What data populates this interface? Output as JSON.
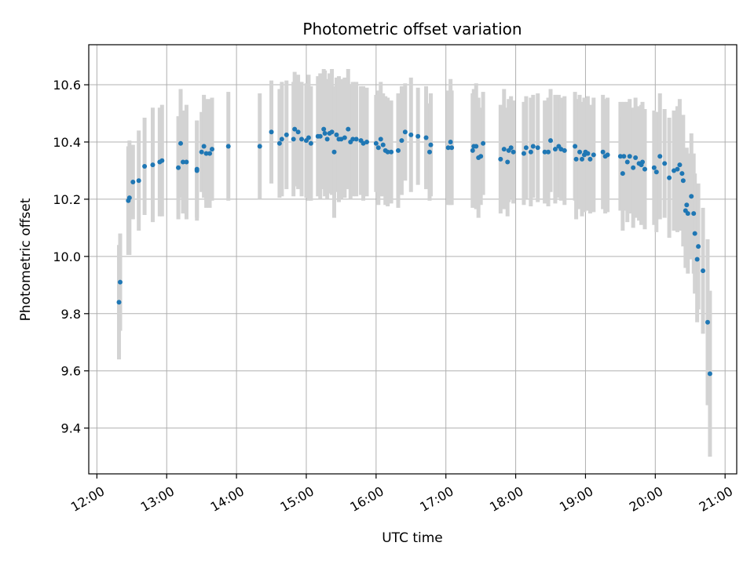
{
  "chart_data": {
    "type": "scatter",
    "title": "Photometric offset variation",
    "xlabel": "UTC time",
    "ylabel": "Photometric offset",
    "x_unit": "hour",
    "xlim": [
      "11:53",
      "21:10"
    ],
    "ylim": [
      9.24,
      10.74
    ],
    "x_ticks": [
      "12:00",
      "13:00",
      "14:00",
      "15:00",
      "16:00",
      "17:00",
      "18:00",
      "19:00",
      "20:00",
      "21:00"
    ],
    "y_ticks": [
      "9.4",
      "9.6",
      "9.8",
      "10.0",
      "10.2",
      "10.4",
      "10.6"
    ],
    "grid": true,
    "point_color": "#1f77b4",
    "errorbar_color": "#d3d3d3",
    "points": [
      [
        "12:19",
        9.84,
        0.2
      ],
      [
        "12:20",
        9.91,
        0.17
      ],
      [
        "12:27",
        10.195,
        0.19
      ],
      [
        "12:28",
        10.205,
        0.2
      ],
      [
        "12:31",
        10.26,
        0.13
      ],
      [
        "12:36",
        10.265,
        0.175
      ],
      [
        "12:41",
        10.315,
        0.17
      ],
      [
        "12:48",
        10.32,
        0.2
      ],
      [
        "12:54",
        10.33,
        0.19
      ],
      [
        "12:56",
        10.335,
        0.195
      ],
      [
        "13:10",
        10.31,
        0.18
      ],
      [
        "13:12",
        10.395,
        0.19
      ],
      [
        "13:14",
        10.33,
        0.18
      ],
      [
        "13:17",
        10.33,
        0.2
      ],
      [
        "13:26",
        10.305,
        0.17
      ],
      [
        "13:26",
        10.3,
        0.175
      ],
      [
        "13:30",
        10.365,
        0.14
      ],
      [
        "13:32",
        10.385,
        0.18
      ],
      [
        "13:34",
        10.36,
        0.19
      ],
      [
        "13:37",
        10.36,
        0.19
      ],
      [
        "13:39",
        10.375,
        0.18
      ],
      [
        "13:53",
        10.385,
        0.19
      ],
      [
        "14:20",
        10.385,
        0.185
      ],
      [
        "14:30",
        10.435,
        0.18
      ],
      [
        "14:37",
        10.395,
        0.19
      ],
      [
        "14:39",
        10.41,
        0.2
      ],
      [
        "14:43",
        10.425,
        0.19
      ],
      [
        "14:49",
        10.41,
        0.2
      ],
      [
        "14:50",
        10.445,
        0.2
      ],
      [
        "14:53",
        10.435,
        0.2
      ],
      [
        "14:56",
        10.41,
        0.2
      ],
      [
        "15:00",
        10.405,
        0.2
      ],
      [
        "15:02",
        10.415,
        0.22
      ],
      [
        "15:04",
        10.395,
        0.2
      ],
      [
        "15:10",
        10.42,
        0.21
      ],
      [
        "15:12",
        10.42,
        0.22
      ],
      [
        "15:15",
        10.445,
        0.21
      ],
      [
        "15:16",
        10.43,
        0.22
      ],
      [
        "15:18",
        10.41,
        0.21
      ],
      [
        "15:20",
        10.43,
        0.21
      ],
      [
        "15:22",
        10.435,
        0.22
      ],
      [
        "15:24",
        10.365,
        0.23
      ],
      [
        "15:26",
        10.425,
        0.2
      ],
      [
        "15:28",
        10.41,
        0.22
      ],
      [
        "15:30",
        10.41,
        0.21
      ],
      [
        "15:33",
        10.415,
        0.21
      ],
      [
        "15:36",
        10.445,
        0.21
      ],
      [
        "15:38",
        10.4,
        0.2
      ],
      [
        "15:40",
        10.41,
        0.2
      ],
      [
        "15:43",
        10.41,
        0.2
      ],
      [
        "15:47",
        10.405,
        0.19
      ],
      [
        "15:49",
        10.395,
        0.2
      ],
      [
        "15:52",
        10.4,
        0.19
      ],
      [
        "16:00",
        10.395,
        0.17
      ],
      [
        "16:02",
        10.38,
        0.2
      ],
      [
        "16:04",
        10.41,
        0.2
      ],
      [
        "16:06",
        10.39,
        0.18
      ],
      [
        "16:08",
        10.37,
        0.19
      ],
      [
        "16:10",
        10.365,
        0.19
      ],
      [
        "16:13",
        10.365,
        0.18
      ],
      [
        "16:19",
        10.37,
        0.2
      ],
      [
        "16:22",
        10.405,
        0.19
      ],
      [
        "16:25",
        10.435,
        0.17
      ],
      [
        "16:30",
        10.425,
        0.2
      ],
      [
        "16:36",
        10.42,
        0.17
      ],
      [
        "16:43",
        10.415,
        0.18
      ],
      [
        "16:46",
        10.365,
        0.17
      ],
      [
        "16:47",
        10.39,
        0.18
      ],
      [
        "17:02",
        10.38,
        0.2
      ],
      [
        "17:04",
        10.4,
        0.22
      ],
      [
        "17:05",
        10.38,
        0.2
      ],
      [
        "17:23",
        10.37,
        0.2
      ],
      [
        "17:24",
        10.385,
        0.2
      ],
      [
        "17:26",
        10.385,
        0.22
      ],
      [
        "17:28",
        10.345,
        0.21
      ],
      [
        "17:30",
        10.35,
        0.17
      ],
      [
        "17:32",
        10.395,
        0.18
      ],
      [
        "17:47",
        10.34,
        0.19
      ],
      [
        "17:50",
        10.375,
        0.21
      ],
      [
        "17:53",
        10.33,
        0.19
      ],
      [
        "17:54",
        10.37,
        0.18
      ],
      [
        "17:56",
        10.38,
        0.18
      ],
      [
        "17:58",
        10.365,
        0.18
      ],
      [
        "18:07",
        10.36,
        0.18
      ],
      [
        "18:09",
        10.38,
        0.18
      ],
      [
        "18:13",
        10.365,
        0.19
      ],
      [
        "18:15",
        10.385,
        0.18
      ],
      [
        "18:19",
        10.38,
        0.19
      ],
      [
        "18:25",
        10.365,
        0.18
      ],
      [
        "18:28",
        10.365,
        0.19
      ],
      [
        "18:30",
        10.405,
        0.18
      ],
      [
        "18:34",
        10.375,
        0.19
      ],
      [
        "18:37",
        10.385,
        0.18
      ],
      [
        "18:39",
        10.375,
        0.18
      ],
      [
        "18:42",
        10.37,
        0.19
      ],
      [
        "18:51",
        10.385,
        0.19
      ],
      [
        "18:52",
        10.34,
        0.21
      ],
      [
        "18:55",
        10.365,
        0.2
      ],
      [
        "18:57",
        10.34,
        0.2
      ],
      [
        "18:59",
        10.355,
        0.2
      ],
      [
        "19:00",
        10.365,
        0.19
      ],
      [
        "19:02",
        10.36,
        0.2
      ],
      [
        "19:04",
        10.34,
        0.19
      ],
      [
        "19:07",
        10.355,
        0.2
      ],
      [
        "19:15",
        10.365,
        0.2
      ],
      [
        "19:17",
        10.35,
        0.2
      ],
      [
        "19:19",
        10.355,
        0.2
      ],
      [
        "19:30",
        10.35,
        0.19
      ],
      [
        "19:32",
        10.29,
        0.2
      ],
      [
        "19:33",
        10.35,
        0.19
      ],
      [
        "19:36",
        10.33,
        0.21
      ],
      [
        "19:38",
        10.35,
        0.2
      ],
      [
        "19:41",
        10.31,
        0.21
      ],
      [
        "19:43",
        10.345,
        0.21
      ],
      [
        "19:46",
        10.325,
        0.2
      ],
      [
        "19:48",
        10.32,
        0.21
      ],
      [
        "19:49",
        10.33,
        0.21
      ],
      [
        "19:51",
        10.305,
        0.21
      ],
      [
        "19:59",
        10.31,
        0.2
      ],
      [
        "20:01",
        10.295,
        0.21
      ],
      [
        "20:04",
        10.35,
        0.22
      ],
      [
        "20:08",
        10.325,
        0.19
      ],
      [
        "20:12",
        10.275,
        0.21
      ],
      [
        "20:16",
        10.3,
        0.21
      ],
      [
        "20:19",
        10.305,
        0.22
      ],
      [
        "20:21",
        10.32,
        0.23
      ],
      [
        "20:23",
        10.29,
        0.19
      ],
      [
        "20:24",
        10.265,
        0.23
      ],
      [
        "20:26",
        10.16,
        0.2
      ],
      [
        "20:27",
        10.18,
        0.2
      ],
      [
        "20:28",
        10.15,
        0.21
      ],
      [
        "20:31",
        10.21,
        0.22
      ],
      [
        "20:33",
        10.15,
        0.21
      ],
      [
        "20:34",
        10.08,
        0.21
      ],
      [
        "20:36",
        9.99,
        0.22
      ],
      [
        "20:37",
        10.035,
        0.22
      ],
      [
        "20:41",
        9.95,
        0.22
      ],
      [
        "20:45",
        9.77,
        0.29
      ],
      [
        "20:47",
        9.59,
        0.29
      ]
    ]
  }
}
